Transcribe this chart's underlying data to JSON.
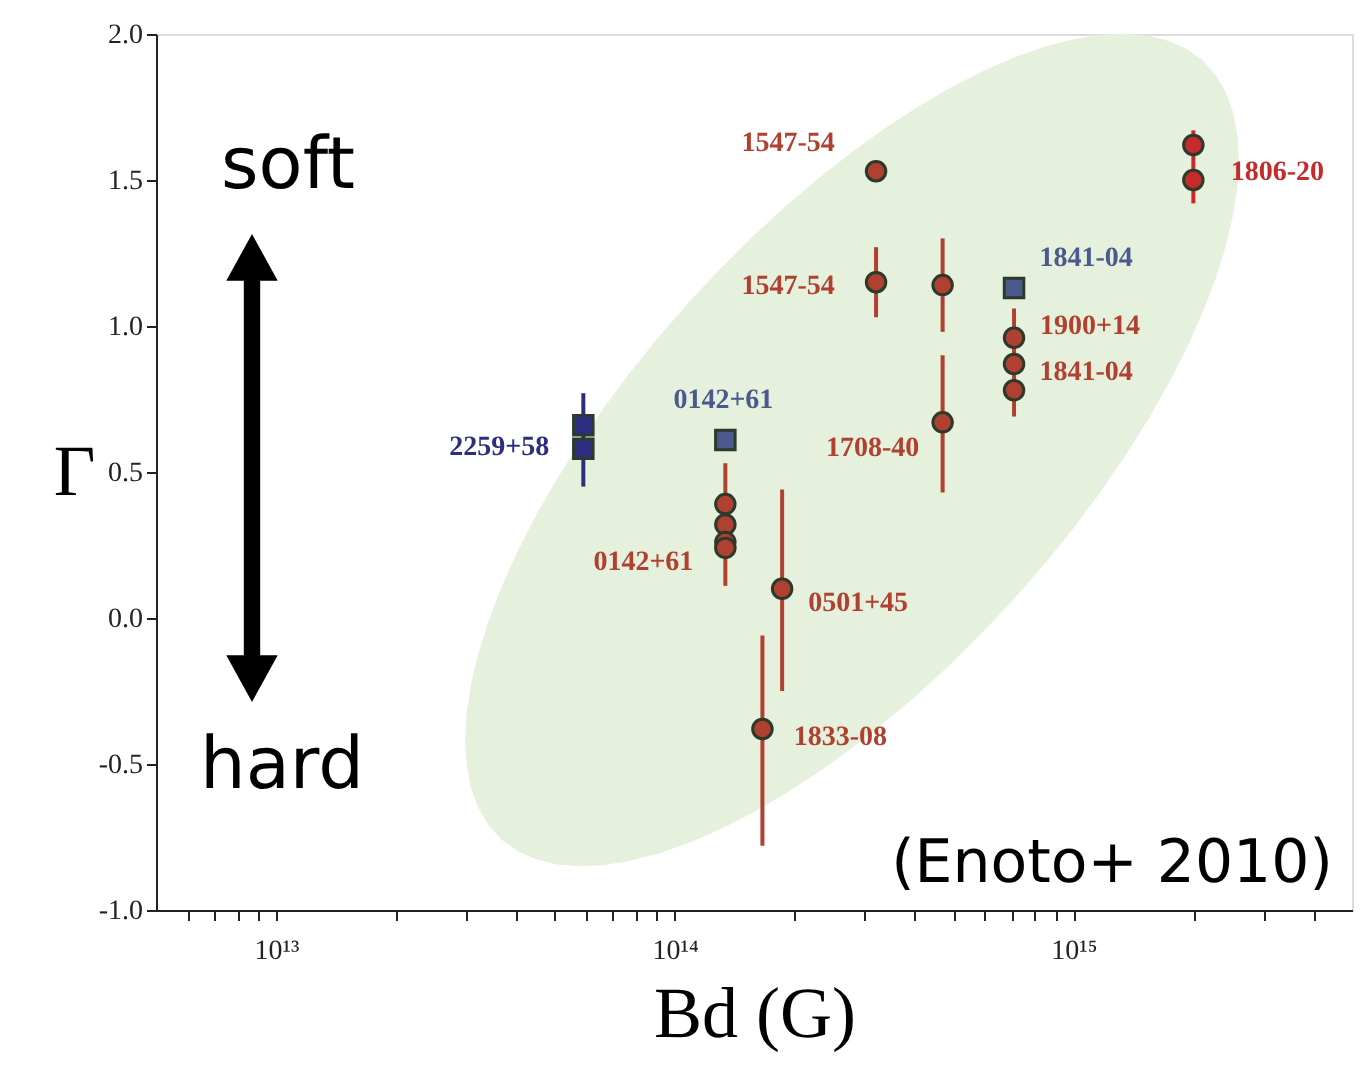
{
  "chart_data": {
    "type": "scatter",
    "xlabel": "Bd (G)",
    "ylabel": "Γ",
    "log": "x",
    "xlim": [
      5000000000000.0,
      5000000000000000.0
    ],
    "xticks": [
      {
        "value": 6000000000000.0,
        "label": null
      },
      {
        "value": 7000000000000.0,
        "label": null
      },
      {
        "value": 8000000000000.0,
        "label": null
      },
      {
        "value": 9000000000000.0,
        "label": null
      },
      {
        "value": 10000000000000.0,
        "label": "10¹³"
      },
      {
        "value": 20000000000000.0,
        "label": null
      },
      {
        "value": 30000000000000.0,
        "label": null
      },
      {
        "value": 40000000000000.0,
        "label": null
      },
      {
        "value": 50000000000000.0,
        "label": null
      },
      {
        "value": 60000000000000.0,
        "label": null
      },
      {
        "value": 70000000000000.0,
        "label": null
      },
      {
        "value": 80000000000000.0,
        "label": null
      },
      {
        "value": 90000000000000.0,
        "label": null
      },
      {
        "value": 100000000000000.0,
        "label": "10¹⁴"
      },
      {
        "value": 200000000000000.0,
        "label": null
      },
      {
        "value": 300000000000000.0,
        "label": null
      },
      {
        "value": 400000000000000.0,
        "label": null
      },
      {
        "value": 500000000000000.0,
        "label": null
      },
      {
        "value": 600000000000000.0,
        "label": null
      },
      {
        "value": 700000000000000.0,
        "label": null
      },
      {
        "value": 800000000000000.0,
        "label": null
      },
      {
        "value": 900000000000000.0,
        "label": null
      },
      {
        "value": 1000000000000000.0,
        "label": "10¹⁵"
      },
      {
        "value": 2000000000000000.0,
        "label": null
      },
      {
        "value": 3000000000000000.0,
        "label": null
      },
      {
        "value": 4000000000000000.0,
        "label": null
      }
    ],
    "ylim": [
      -1.0,
      2.0
    ],
    "yticks": [
      {
        "value": -1,
        "label": "-1.0"
      },
      {
        "value": -0.5,
        "label": "-0.5"
      },
      {
        "value": 0,
        "label": "0.0"
      },
      {
        "value": 0.5,
        "label": "0.5"
      },
      {
        "value": 1,
        "label": "1.0"
      },
      {
        "value": 1.5,
        "label": "1.5"
      },
      {
        "value": 2,
        "label": "2.0"
      }
    ],
    "grid": false,
    "series": [
      {
        "color": "#b0402f",
        "marker": "circle",
        "x": [
          134000000000000.0,
          134000000000000.0,
          134000000000000.0,
          134000000000000.0,
          186000000000000.0,
          166000000000000.0,
          320000000000000.0,
          320000000000000.0,
          470000000000000.0,
          470000000000000.0,
          710000000000000.0,
          710000000000000.0,
          710000000000000.0
        ],
        "values": [
          0.39,
          0.32,
          0.26,
          0.24,
          0.1,
          -0.38,
          1.53,
          1.15,
          1.14,
          0.67,
          0.96,
          0.87,
          0.78
        ],
        "errors": [
          null,
          null,
          null,
          [
            0.11,
            0.53
          ],
          [
            -0.25,
            0.44
          ],
          [
            -0.78,
            -0.06
          ],
          null,
          [
            1.03,
            1.27
          ],
          [
            0.98,
            1.3
          ],
          [
            0.43,
            0.9
          ],
          null,
          [
            0.69,
            1.06
          ],
          null
        ]
      },
      {
        "color": "#c62a2a",
        "marker": "circle",
        "x": [
          2000000000000000.0,
          2000000000000000.0
        ],
        "values": [
          1.62,
          1.5
        ],
        "errors": [
          [
            1.42,
            1.67
          ],
          null
        ]
      },
      {
        "color": "#2e2e80",
        "marker": "square",
        "x": [
          59000000000000.0,
          59000000000000.0
        ],
        "values": [
          0.66,
          0.58
        ],
        "errors": [
          [
            0.45,
            0.77
          ],
          null
        ]
      },
      {
        "color": "#4a5a8c",
        "marker": "square",
        "x": [
          134000000000000.0,
          710000000000000.0
        ],
        "values": [
          0.61,
          1.13
        ]
      }
    ],
    "annotations": [
      {
        "text": "2259+58",
        "x": 59000000000000.0,
        "y": 0.58
      },
      {
        "text": "0142+61",
        "x": 134000000000000.0,
        "y": 0.61
      },
      {
        "text": "0142+61",
        "x": 134000000000000.0,
        "y": 0.24
      },
      {
        "text": "0501+45",
        "x": 186000000000000.0,
        "y": 0.1
      },
      {
        "text": "1833-08",
        "x": 166000000000000.0,
        "y": -0.38
      },
      {
        "text": "1547-54",
        "x": 320000000000000.0,
        "y": 1.53
      },
      {
        "text": "1547-54",
        "x": 320000000000000.0,
        "y": 1.15
      },
      {
        "text": "1708-40",
        "x": 470000000000000.0,
        "y": 0.67
      },
      {
        "text": "1841-04",
        "x": 710000000000000.0,
        "y": 1.13
      },
      {
        "text": "1900+14",
        "x": 710000000000000.0,
        "y": 0.96
      },
      {
        "text": "1841-04",
        "x": 710000000000000.0,
        "y": 0.87
      },
      {
        "text": "1806-20",
        "x": 2000000000000000.0,
        "y": 1.5
      },
      "soft",
      "hard",
      "(Enoto+ 2010)"
    ]
  }
}
